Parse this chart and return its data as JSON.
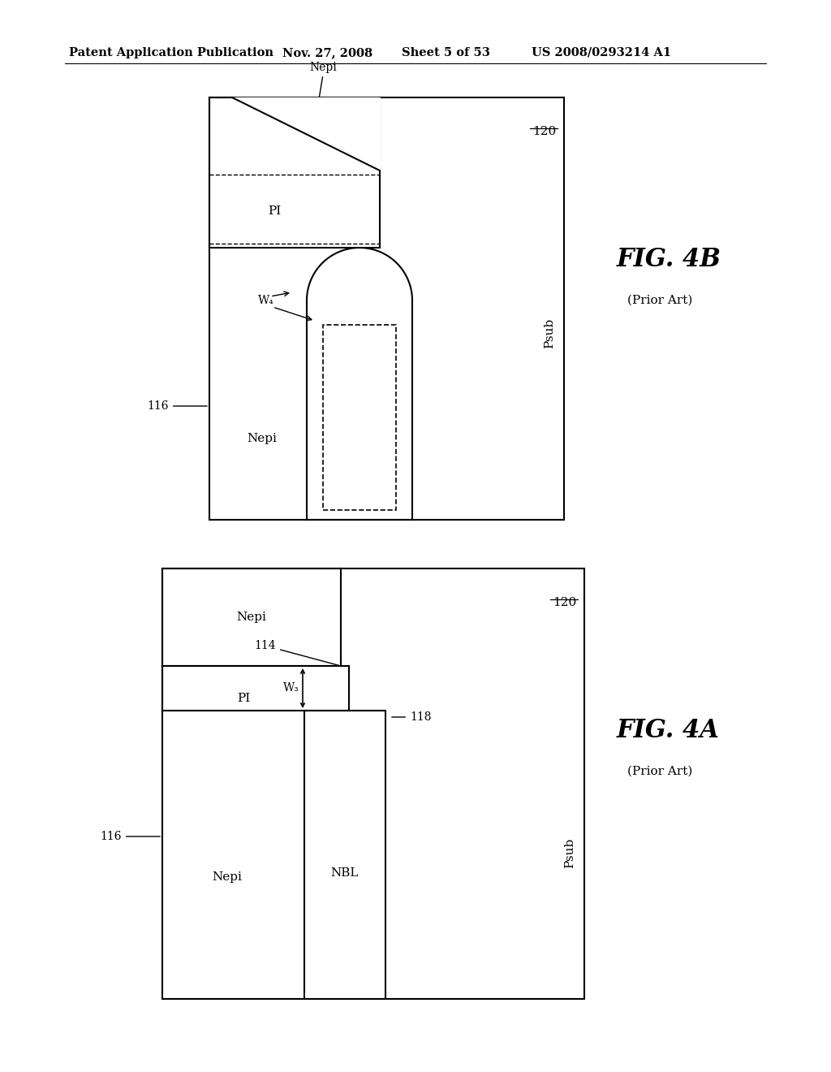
{
  "bg_color": "#ffffff",
  "header_text": "Patent Application Publication",
  "header_date": "Nov. 27, 2008",
  "header_sheet": "Sheet 5 of 53",
  "header_patent": "US 2008/0293214 A1",
  "fig_4b_label": "FIG. 4B",
  "fig_4b_sublabel": "(Prior Art)",
  "fig_4a_label": "FIG. 4A",
  "fig_4a_sublabel": "(Prior Art)"
}
